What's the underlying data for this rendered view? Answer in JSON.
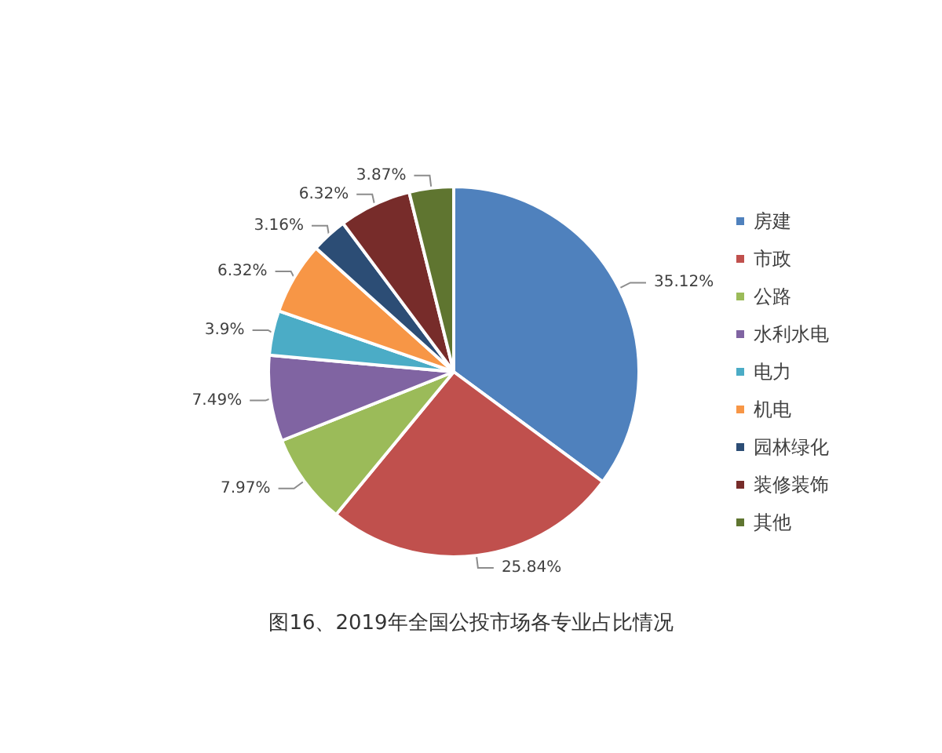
{
  "chart_data": {
    "type": "pie",
    "title": "图16、2019年全国公投市场各专业占比情况",
    "categories": [
      "房建",
      "市政",
      "公路",
      "水利水电",
      "电力",
      "机电",
      "园林绿化",
      "装修装饰",
      "其他"
    ],
    "values": [
      35.12,
      25.84,
      7.97,
      7.49,
      3.9,
      6.32,
      3.16,
      6.32,
      3.87
    ],
    "colors": [
      "#4f81bd",
      "#c0504d",
      "#9bbb59",
      "#8064a2",
      "#4bacc6",
      "#f79646",
      "#2c4d75",
      "#772c2a",
      "#5f7530"
    ],
    "value_labels": [
      "35.12%",
      "25.84%",
      "7.97%",
      "7.49%",
      "3.9%",
      "6.32%",
      "3.16%",
      "6.32%",
      "3.87%"
    ],
    "legend": "right"
  }
}
